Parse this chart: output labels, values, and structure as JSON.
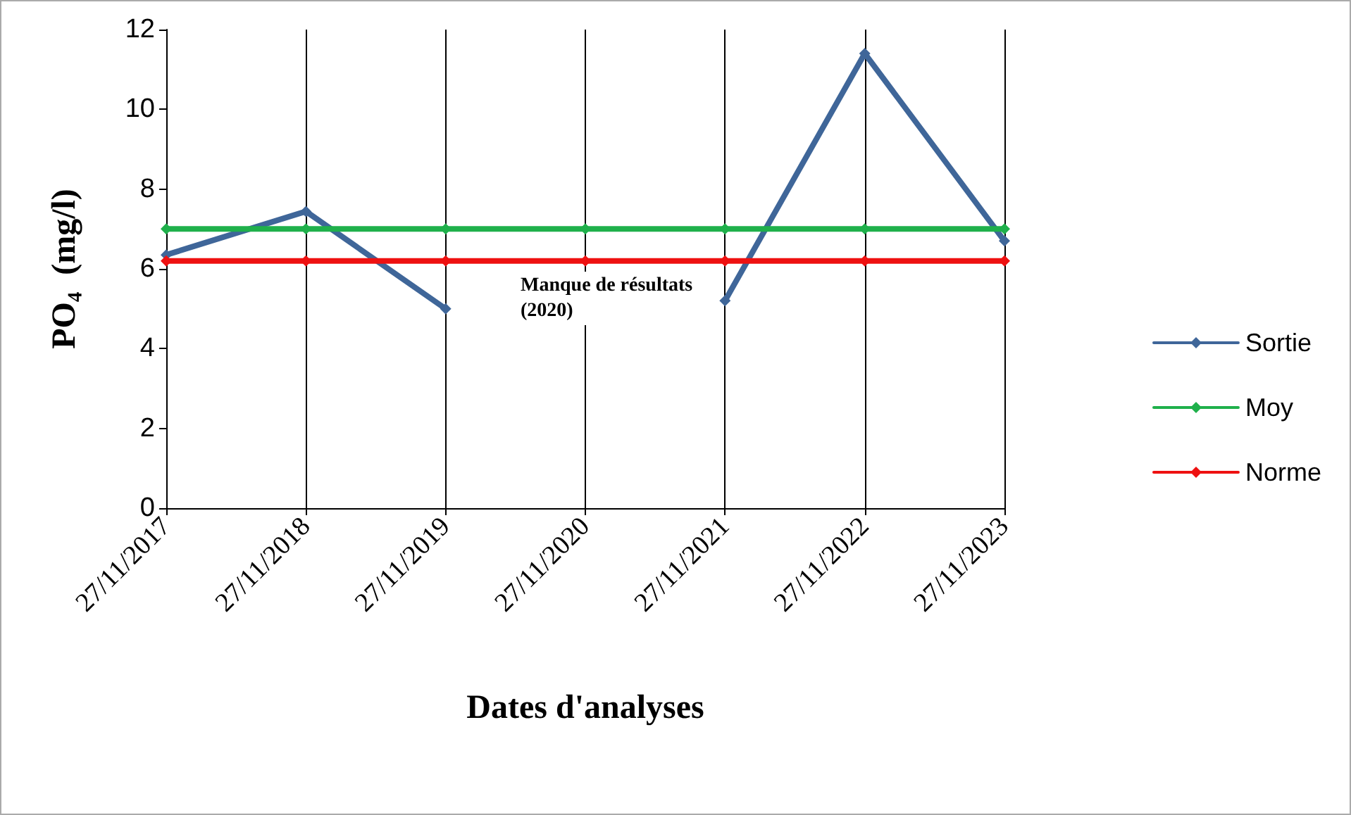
{
  "chart_data": {
    "type": "line",
    "xlabel": "Dates d'analyses",
    "ylabel": "PO₄  (mg/l)",
    "categories": [
      "27/11/2017",
      "27/11/2018",
      "27/11/2019",
      "27/11/2020",
      "27/11/2021",
      "27/11/2022",
      "27/11/2023"
    ],
    "series": [
      {
        "name": "Sortie",
        "color": "#3f6699",
        "values": [
          6.35,
          7.44,
          5.0,
          null,
          5.2,
          11.4,
          6.7
        ]
      },
      {
        "name": "Moy",
        "color": "#1fb04b",
        "values": [
          7,
          7,
          7,
          7,
          7,
          7,
          7
        ]
      },
      {
        "name": "Norme",
        "color": "#ee1111",
        "values": [
          6.2,
          6.2,
          6.2,
          6.2,
          6.2,
          6.2,
          6.2
        ]
      }
    ],
    "ylim": [
      0,
      12
    ],
    "yticks": [
      0,
      2,
      4,
      6,
      8,
      10,
      12
    ],
    "grid": "x",
    "legend": "right",
    "marker": "diamond",
    "line_style": "solid",
    "annotations": [
      "Manque de résultats\n(2020)"
    ]
  }
}
